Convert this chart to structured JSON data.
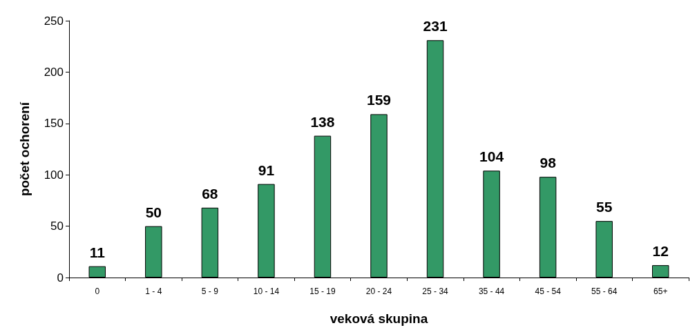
{
  "chart_data": {
    "type": "bar",
    "xlabel": "veková skupina",
    "ylabel": "počet ochorení",
    "categories": [
      "0",
      "1 - 4",
      "5 - 9",
      "10 - 14",
      "15 - 19",
      "20 - 24",
      "25 - 34",
      "35 - 44",
      "45 - 54",
      "55 - 64",
      "65+"
    ],
    "values": [
      11,
      50,
      68,
      91,
      138,
      159,
      231,
      104,
      98,
      55,
      12
    ],
    "color": "#339966",
    "ylim": [
      0,
      250
    ],
    "yticks": [
      0,
      50,
      100,
      150,
      200,
      250
    ],
    "grid": false,
    "data_labels": true
  }
}
